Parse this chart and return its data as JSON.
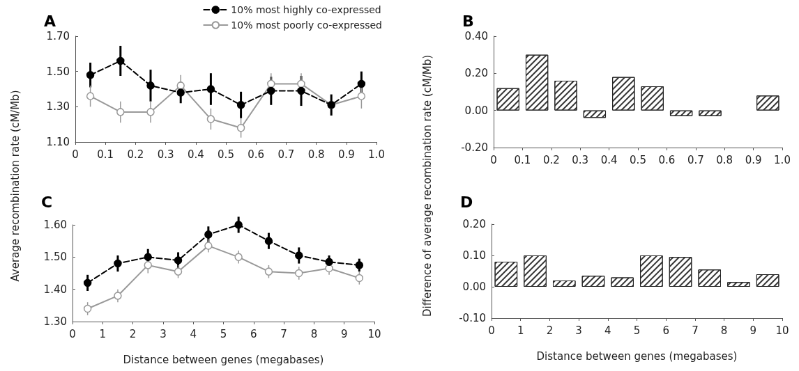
{
  "chart_data": [
    {
      "type": "line",
      "title": "A",
      "ylabel": "Average recombination rate (cM/Mb)",
      "legend": "top right",
      "marker": "circle",
      "grid": false,
      "x": [
        0.05,
        0.15,
        0.25,
        0.35,
        0.45,
        0.55,
        0.65,
        0.75,
        0.85,
        0.95
      ],
      "xlim": [
        0,
        1
      ],
      "xticks": [
        0,
        0.1,
        0.2,
        0.3,
        0.4,
        0.5,
        0.6,
        0.7,
        0.8,
        0.9,
        {
          "value": 1,
          "label": "1.0"
        }
      ],
      "ylim": [
        1.1,
        1.7
      ],
      "yticks": [
        {
          "value": 1.1,
          "label": "1.10"
        },
        {
          "value": 1.3,
          "label": "1.30"
        },
        {
          "value": 1.5,
          "label": "1.50"
        },
        {
          "value": 1.7,
          "label": "1.70"
        }
      ],
      "series": [
        {
          "name": "10% most highly co-expressed",
          "color": "#000000",
          "line_style": "dashed",
          "values": [
            1.48,
            1.56,
            1.42,
            1.38,
            1.4,
            1.31,
            1.39,
            1.39,
            1.31,
            1.43
          ],
          "errors": [
            0.07,
            0.085,
            0.09,
            0.06,
            0.09,
            0.075,
            0.08,
            0.085,
            0.06,
            0.07
          ]
        },
        {
          "name": "10% most poorly co-expressed",
          "color": "#999999",
          "line_style": "solid",
          "values": [
            1.36,
            1.27,
            1.27,
            1.42,
            1.23,
            1.18,
            1.43,
            1.43,
            1.31,
            1.36
          ],
          "errors": [
            0.06,
            0.06,
            0.06,
            0.06,
            0.06,
            0.055,
            0.06,
            0.06,
            null,
            0.07
          ]
        }
      ]
    },
    {
      "type": "bar",
      "title": "B",
      "ylabel": "Difference of average recombination rate (cM/Mb)",
      "color": "#ffffff",
      "grid": false,
      "x": [
        0.05,
        0.15,
        0.25,
        0.35,
        0.45,
        0.55,
        0.65,
        0.75,
        0.85,
        0.95
      ],
      "values": [
        0.12,
        0.3,
        0.16,
        -0.04,
        0.18,
        0.13,
        -0.03,
        -0.03,
        null,
        0.08
      ],
      "xlim": [
        0,
        1
      ],
      "xticks": [
        0,
        0.1,
        0.2,
        0.3,
        0.4,
        0.5,
        0.6,
        0.7,
        0.8,
        0.9,
        {
          "value": 1,
          "label": "1.0"
        }
      ],
      "ylim": [
        -0.2,
        0.4
      ],
      "yticks": [
        {
          "value": -0.2,
          "label": "-0.20"
        },
        {
          "value": 0,
          "label": "0.00"
        },
        {
          "value": 0.2,
          "label": "0.20"
        },
        {
          "value": 0.4,
          "label": "0.40"
        }
      ]
    },
    {
      "type": "line",
      "title": "C",
      "xlabel": "Distance between genes (megabases)",
      "marker": "circle",
      "grid": false,
      "x": [
        0.5,
        1.5,
        2.5,
        3.5,
        4.5,
        5.5,
        6.5,
        7.5,
        8.5,
        9.5
      ],
      "xlim": [
        0,
        10
      ],
      "xticks": [
        0,
        1,
        2,
        3,
        4,
        5,
        6,
        7,
        8,
        9,
        10
      ],
      "ylim": [
        1.3,
        1.6
      ],
      "yticks": [
        {
          "value": 1.3,
          "label": "1.30"
        },
        {
          "value": 1.4,
          "label": "1.40"
        },
        {
          "value": 1.5,
          "label": "1.50"
        },
        {
          "value": 1.6,
          "label": "1.60"
        }
      ],
      "series": [
        {
          "color": "#000000",
          "line_style": "dashed",
          "values": [
            1.42,
            1.48,
            1.5,
            1.49,
            1.57,
            1.6,
            1.55,
            1.505,
            1.485,
            1.475
          ],
          "errors": [
            0.025,
            0.025,
            0.025,
            0.025,
            0.025,
            0.025,
            0.025,
            0.025,
            0.02,
            0.02
          ]
        },
        {
          "color": "#999999",
          "line_style": "solid",
          "values": [
            1.34,
            1.38,
            1.475,
            1.455,
            1.535,
            1.5,
            1.455,
            1.45,
            1.465,
            1.435
          ],
          "errors": [
            0.02,
            0.02,
            0.025,
            0.02,
            0.02,
            0.02,
            0.02,
            0.02,
            0.02,
            0.02
          ]
        }
      ]
    },
    {
      "type": "bar",
      "title": "D",
      "xlabel": "Distance between genes (megabases)",
      "color": "#ffffff",
      "grid": false,
      "x": [
        0.5,
        1.5,
        2.5,
        3.5,
        4.5,
        5.5,
        6.5,
        7.5,
        8.5,
        9.5
      ],
      "values": [
        0.08,
        0.1,
        0.02,
        0.035,
        0.03,
        0.1,
        0.095,
        0.055,
        0.015,
        0.04
      ],
      "xlim": [
        0,
        10
      ],
      "xticks": [
        0,
        1,
        2,
        3,
        4,
        5,
        6,
        7,
        8,
        9,
        10
      ],
      "ylim": [
        -0.1,
        0.2
      ],
      "yticks": [
        {
          "value": -0.1,
          "label": "-0.10"
        },
        {
          "value": 0,
          "label": "0.00"
        },
        {
          "value": 0.1,
          "label": "0.10"
        },
        {
          "value": 0.2,
          "label": "0.20"
        }
      ]
    }
  ]
}
